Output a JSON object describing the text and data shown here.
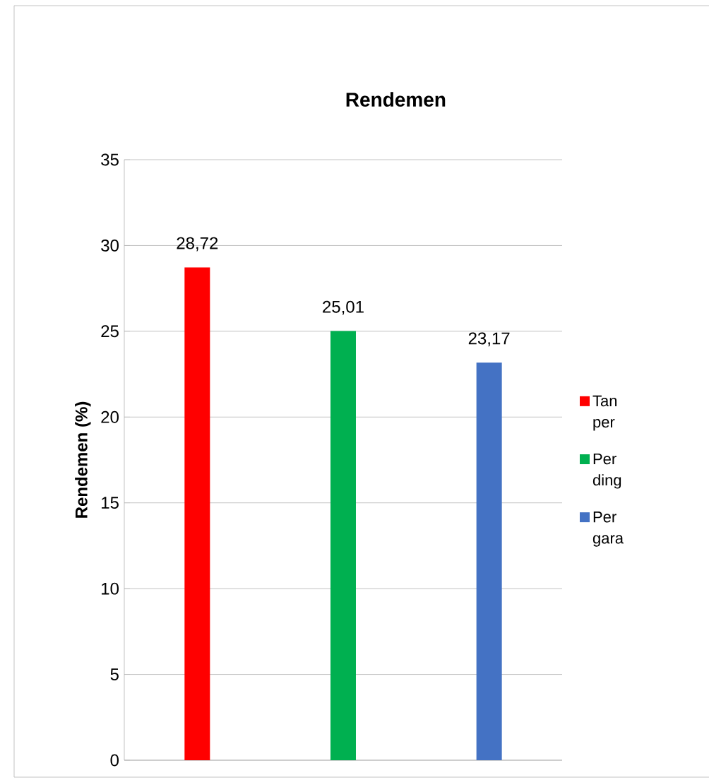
{
  "chart_data": {
    "type": "bar",
    "title": "Rendemen",
    "ylabel": "Rendemen (%)",
    "categories": [
      null,
      null,
      null
    ],
    "series": [
      {
        "name": "Tan per",
        "color": "#ff0000",
        "values": [
          28.72,
          null,
          null
        ],
        "value_labels": [
          "28,72",
          null,
          null
        ]
      },
      {
        "name": "Per ding",
        "color": "#00b050",
        "values": [
          null,
          25.01,
          null
        ],
        "value_labels": [
          null,
          "25,01",
          null
        ]
      },
      {
        "name": "Per gara",
        "color": "#4472c4",
        "values": [
          null,
          null,
          23.17
        ],
        "value_labels": [
          null,
          null,
          "23,17"
        ]
      }
    ],
    "ylim": [
      0,
      35
    ],
    "yticks": [
      0,
      5,
      10,
      15,
      20,
      25,
      30,
      35
    ],
    "grid": "y",
    "legend": "right"
  }
}
